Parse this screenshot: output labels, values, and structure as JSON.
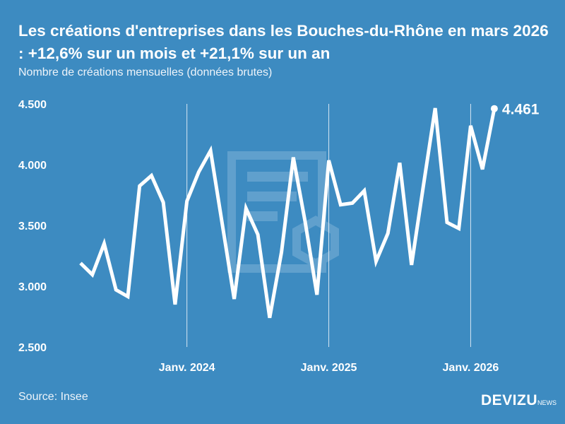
{
  "chart_data": {
    "type": "line",
    "title": "Les créations d'entreprises dans les Bouches-du-Rhône en mars 2026 : +12,6% sur un mois et +21,1% sur un an",
    "subtitle": "Nombre de créations mensuelles (données brutes)",
    "x_start": "2023-04",
    "x_end": "2026-03",
    "x_ticks": [
      {
        "month": "2024-01",
        "label": "Janv. 2024"
      },
      {
        "month": "2025-01",
        "label": "Janv. 2025"
      },
      {
        "month": "2026-01",
        "label": "Janv. 2026"
      }
    ],
    "y_ticks": [
      {
        "value": 4500,
        "label": "4.500"
      },
      {
        "value": 4000,
        "label": "4.000"
      },
      {
        "value": 3500,
        "label": "3.500"
      },
      {
        "value": 3000,
        "label": "3.000"
      },
      {
        "value": 2500,
        "label": "2.500"
      }
    ],
    "ylim": [
      2500,
      4500
    ],
    "grid": "vertical lines at January",
    "values": [
      3190,
      3095,
      3350,
      2970,
      2915,
      3825,
      3910,
      3690,
      2850,
      3700,
      3940,
      4115,
      3505,
      2895,
      3640,
      3425,
      2740,
      3280,
      4060,
      3530,
      2930,
      4035,
      3670,
      3684,
      3785,
      3205,
      3435,
      4015,
      3175,
      3825,
      4465,
      3525,
      3475,
      4320,
      3962,
      4461
    ],
    "last_label": "4.461",
    "line_color": "#ffffff"
  },
  "source": "Source: Insee",
  "logo": {
    "main": "DEVIZU",
    "suffix": "NEWS"
  },
  "colors": {
    "background": "#3d8bc1",
    "watermark": "#6aa6d2"
  }
}
